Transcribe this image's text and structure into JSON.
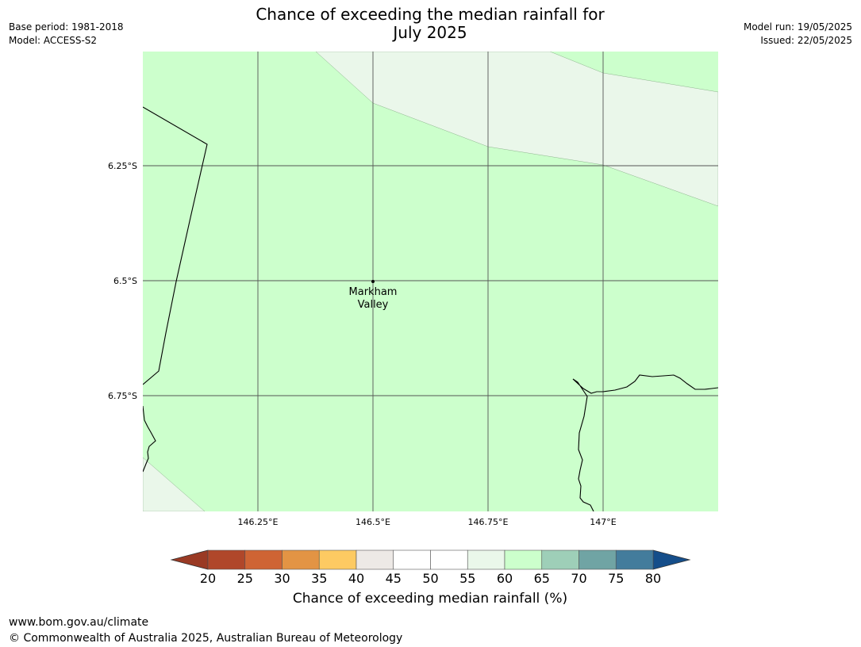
{
  "title_line1": "Chance of exceeding the median rainfall for",
  "title_line2": "July 2025",
  "meta_left": [
    "Base period: 1981-2018",
    "Model: ACCESS-S2"
  ],
  "meta_right": [
    "Model run: 19/05/2025",
    "Issued: 22/05/2025"
  ],
  "map": {
    "lat_labels": [
      "6.25°S",
      "6.5°S",
      "6.75°S"
    ],
    "lon_labels": [
      "146.25°E",
      "146.5°E",
      "146.75°E",
      "147°E"
    ],
    "place_label": [
      "Markham",
      "Valley"
    ],
    "colors": {
      "band_60_65": "#ccffcc",
      "band_55_60": "#eaf7ea",
      "gridline": "#555555",
      "coastline": "#000000"
    }
  },
  "colorbar": {
    "label": "Chance of exceeding median rainfall (%)",
    "ticks": [
      "20",
      "25",
      "30",
      "35",
      "40",
      "45",
      "50",
      "55",
      "60",
      "65",
      "70",
      "75",
      "80"
    ],
    "under_color": "#9a3a24",
    "over_color": "#154e8a",
    "colors": [
      "#b0472a",
      "#cf6434",
      "#e39444",
      "#fdca62",
      "#ede9e6",
      "#ffffff",
      "#ffffff",
      "#eaf7ea",
      "#ccffcc",
      "#9ecfb8",
      "#70a4a4",
      "#437c9c"
    ]
  },
  "footer": [
    "www.bom.gov.au/climate",
    "© Commonwealth of Australia 2025, Australian Bureau of Meteorology"
  ]
}
